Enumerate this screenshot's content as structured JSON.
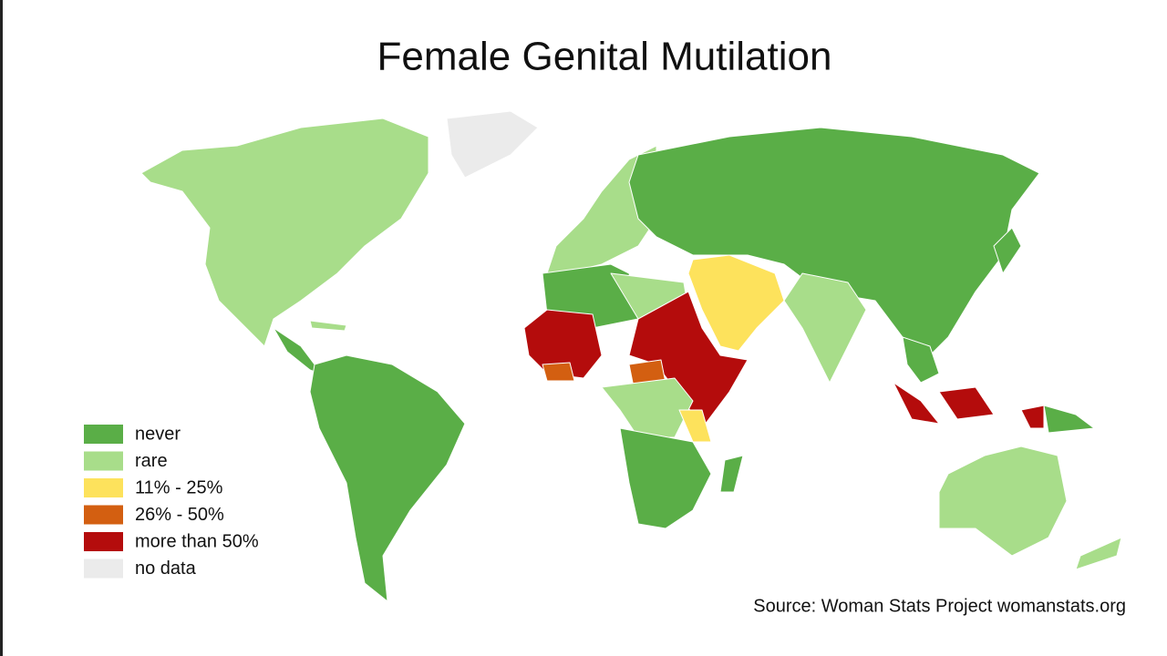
{
  "title": "Female Genital Mutilation",
  "legend": [
    {
      "label": "never",
      "color": "#5aae47"
    },
    {
      "label": "rare",
      "color": "#a8dd8a"
    },
    {
      "label": "11% - 25%",
      "color": "#fde25c"
    },
    {
      "label": "26% - 50%",
      "color": "#d35f11"
    },
    {
      "label": "more than 50%",
      "color": "#b40c0c"
    },
    {
      "label": "no data",
      "color": "#ebebeb"
    }
  ],
  "source": "Source: Woman Stats Project womanstats.org"
}
